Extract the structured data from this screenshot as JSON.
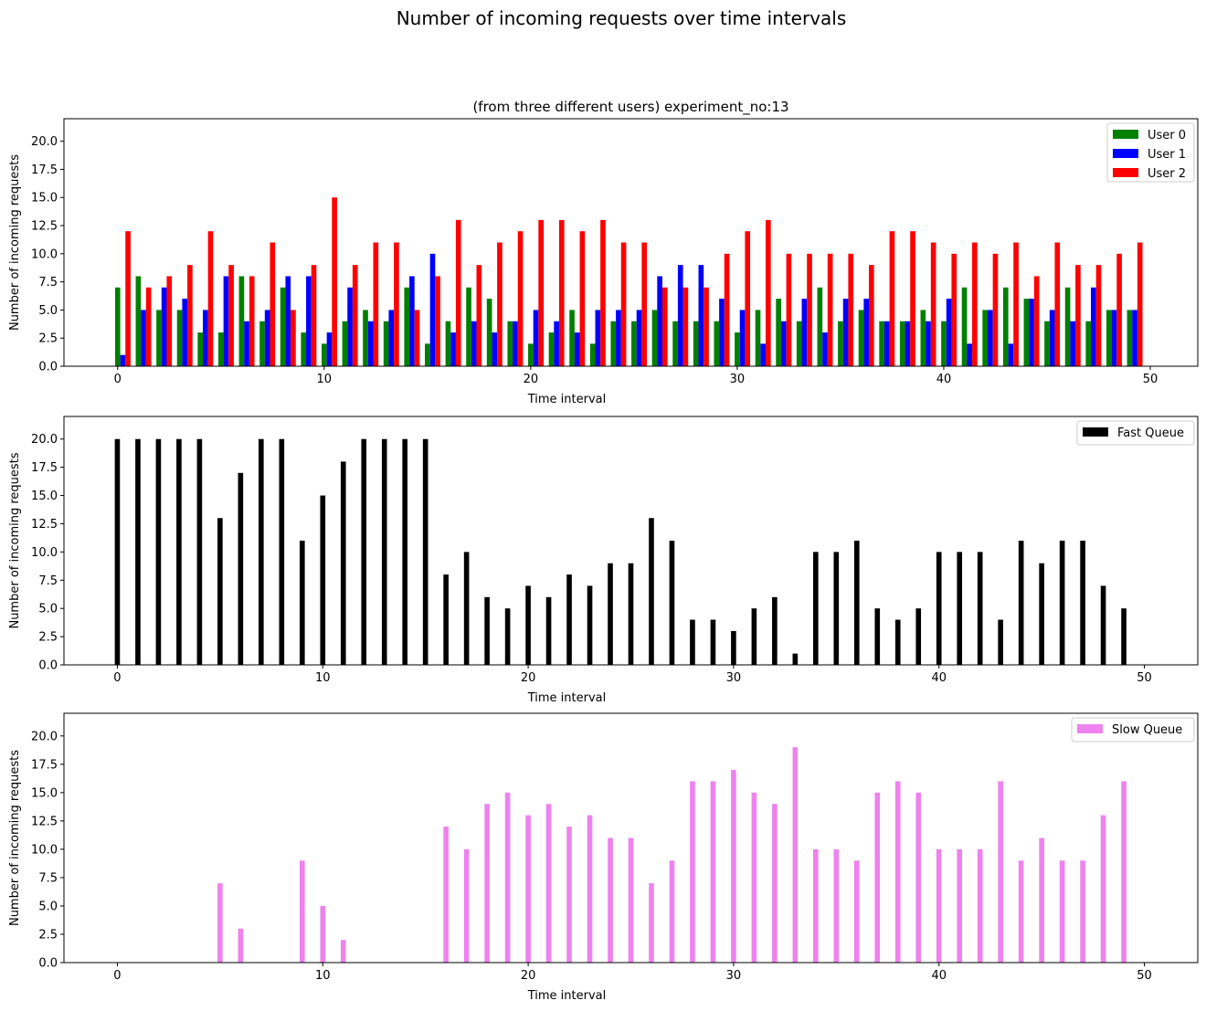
{
  "figure": {
    "title": "Number of incoming requests over time intervals"
  },
  "chart_data": [
    {
      "type": "bar",
      "title": "(from three different users) experiment_no:13",
      "xlabel": "Time interval",
      "ylabel": "Number of incoming requests",
      "xlim": [
        -2.6,
        52.3
      ],
      "ylim": [
        0,
        22
      ],
      "xticks": [
        0,
        10,
        20,
        30,
        40,
        50
      ],
      "yticks": [
        "0.0",
        "2.5",
        "5.0",
        "7.5",
        "10.0",
        "12.5",
        "15.0",
        "17.5",
        "20.0"
      ],
      "bar_width": 0.25,
      "legend": "upper-right",
      "grid": false,
      "x": [
        0,
        1,
        2,
        3,
        4,
        5,
        6,
        7,
        8,
        9,
        10,
        11,
        12,
        13,
        14,
        15,
        16,
        17,
        18,
        19,
        20,
        21,
        22,
        23,
        24,
        25,
        26,
        27,
        28,
        29,
        30,
        31,
        32,
        33,
        34,
        35,
        36,
        37,
        38,
        39,
        40,
        41,
        42,
        43,
        44,
        45,
        46,
        47,
        48,
        49
      ],
      "series": [
        {
          "name": "User 0",
          "color": "#008000",
          "offset": 0,
          "values": [
            7,
            8,
            5,
            5,
            3,
            3,
            8,
            4,
            7,
            3,
            2,
            4,
            5,
            4,
            7,
            2,
            4,
            7,
            6,
            4,
            2,
            3,
            5,
            2,
            4,
            4,
            5,
            4,
            4,
            4,
            3,
            5,
            6,
            4,
            7,
            4,
            5,
            4,
            4,
            5,
            4,
            7,
            5,
            7,
            6,
            4,
            7,
            4,
            5,
            5
          ]
        },
        {
          "name": "User 1",
          "color": "#0000ff",
          "offset": 0.25,
          "values": [
            1,
            5,
            7,
            6,
            5,
            8,
            4,
            5,
            8,
            8,
            3,
            7,
            4,
            5,
            8,
            10,
            3,
            4,
            3,
            4,
            5,
            4,
            3,
            5,
            5,
            5,
            8,
            9,
            9,
            6,
            5,
            2,
            4,
            6,
            3,
            6,
            6,
            4,
            4,
            4,
            6,
            2,
            5,
            2,
            6,
            5,
            4,
            7,
            5,
            5
          ]
        },
        {
          "name": "User 2",
          "color": "#ff0000",
          "offset": 0.5,
          "values": [
            12,
            7,
            8,
            9,
            12,
            9,
            8,
            11,
            5,
            9,
            15,
            9,
            11,
            11,
            5,
            8,
            13,
            9,
            11,
            12,
            13,
            13,
            12,
            13,
            11,
            11,
            7,
            7,
            7,
            10,
            12,
            13,
            10,
            10,
            10,
            10,
            9,
            12,
            12,
            11,
            10,
            11,
            10,
            11,
            8,
            11,
            9,
            9,
            10,
            11
          ]
        }
      ]
    },
    {
      "type": "bar",
      "xlabel": "Time interval",
      "ylabel": "Number of incoming requests",
      "xlim": [
        -2.6,
        52.6
      ],
      "ylim": [
        0,
        22
      ],
      "xticks": [
        0,
        10,
        20,
        30,
        40,
        50
      ],
      "yticks": [
        "0.0",
        "2.5",
        "5.0",
        "7.5",
        "10.0",
        "12.5",
        "15.0",
        "17.5",
        "20.0"
      ],
      "bar_width": 0.25,
      "legend": "upper-right",
      "grid": false,
      "x": [
        0,
        1,
        2,
        3,
        4,
        5,
        6,
        7,
        8,
        9,
        10,
        11,
        12,
        13,
        14,
        15,
        16,
        17,
        18,
        19,
        20,
        21,
        22,
        23,
        24,
        25,
        26,
        27,
        28,
        29,
        30,
        31,
        32,
        33,
        34,
        35,
        36,
        37,
        38,
        39,
        40,
        41,
        42,
        43,
        44,
        45,
        46,
        47,
        48,
        49
      ],
      "series": [
        {
          "name": "Fast Queue",
          "color": "#000000",
          "offset": 0,
          "values": [
            20,
            20,
            20,
            20,
            20,
            13,
            17,
            20,
            20,
            11,
            15,
            18,
            20,
            20,
            20,
            20,
            8,
            10,
            6,
            5,
            7,
            6,
            8,
            7,
            9,
            9,
            13,
            11,
            4,
            4,
            3,
            5,
            6,
            1,
            10,
            10,
            11,
            5,
            4,
            5,
            10,
            10,
            10,
            4,
            11,
            9,
            11,
            11,
            7,
            5
          ]
        }
      ]
    },
    {
      "type": "bar",
      "xlabel": "Time interval",
      "ylabel": "Number of incoming requests",
      "xlim": [
        -2.6,
        52.6
      ],
      "ylim": [
        0,
        22
      ],
      "xticks": [
        0,
        10,
        20,
        30,
        40,
        50
      ],
      "yticks": [
        "0.0",
        "2.5",
        "5.0",
        "7.5",
        "10.0",
        "12.5",
        "15.0",
        "17.5",
        "20.0"
      ],
      "bar_width": 0.25,
      "legend": "upper-right",
      "grid": false,
      "x": [
        0,
        1,
        2,
        3,
        4,
        5,
        6,
        7,
        8,
        9,
        10,
        11,
        12,
        13,
        14,
        15,
        16,
        17,
        18,
        19,
        20,
        21,
        22,
        23,
        24,
        25,
        26,
        27,
        28,
        29,
        30,
        31,
        32,
        33,
        34,
        35,
        36,
        37,
        38,
        39,
        40,
        41,
        42,
        43,
        44,
        45,
        46,
        47,
        48,
        49
      ],
      "series": [
        {
          "name": "Slow Queue",
          "color": "#ee82ee",
          "offset": 0,
          "values": [
            0,
            0,
            0,
            0,
            0,
            7,
            3,
            0,
            0,
            9,
            5,
            2,
            0,
            0,
            0,
            0,
            12,
            10,
            14,
            15,
            13,
            14,
            12,
            13,
            11,
            11,
            7,
            9,
            16,
            16,
            17,
            15,
            14,
            19,
            10,
            10,
            9,
            15,
            16,
            15,
            10,
            10,
            10,
            16,
            9,
            11,
            9,
            9,
            13,
            16
          ]
        }
      ]
    }
  ]
}
